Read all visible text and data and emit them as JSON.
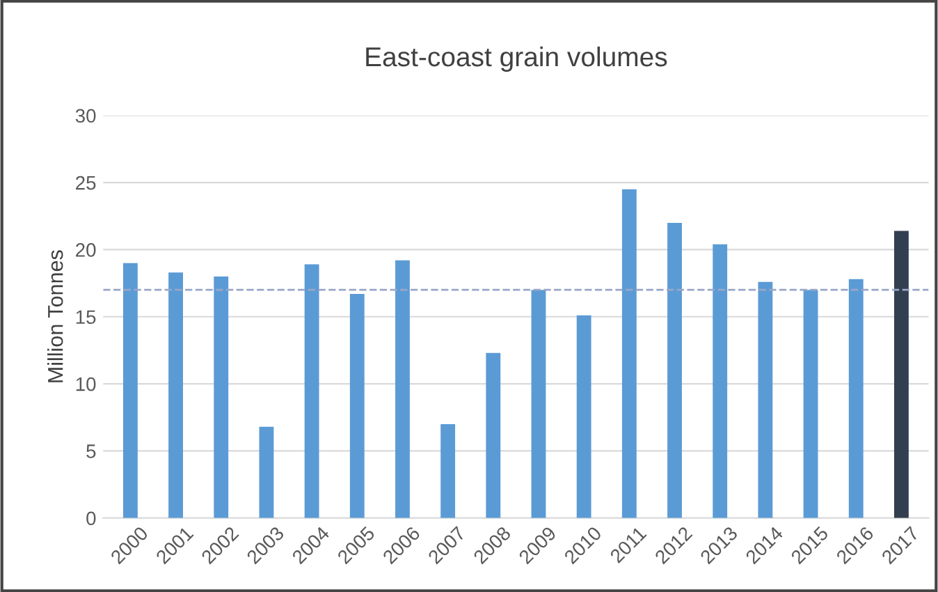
{
  "chart_data": {
    "type": "bar",
    "title": "East-coast grain volumes",
    "ylabel": "Million Tonnes",
    "categories": [
      "2000",
      "2001",
      "2002",
      "2003",
      "2004",
      "2005",
      "2006",
      "2007",
      "2008",
      "2009",
      "2010",
      "2011",
      "2012",
      "2013",
      "2014",
      "2015",
      "2016",
      "2017"
    ],
    "values": [
      19.0,
      18.3,
      18.0,
      6.8,
      18.9,
      16.7,
      19.2,
      7.0,
      12.3,
      17.0,
      15.1,
      24.5,
      22.0,
      20.4,
      17.6,
      17.0,
      17.8,
      21.4
    ],
    "colors": [
      "#5b9bd5",
      "#5b9bd5",
      "#5b9bd5",
      "#5b9bd5",
      "#5b9bd5",
      "#5b9bd5",
      "#5b9bd5",
      "#5b9bd5",
      "#5b9bd5",
      "#5b9bd5",
      "#5b9bd5",
      "#5b9bd5",
      "#5b9bd5",
      "#5b9bd5",
      "#5b9bd5",
      "#5b9bd5",
      "#5b9bd5",
      "#323f50"
    ],
    "ylim": [
      0,
      30
    ],
    "yticks": [
      0,
      5,
      10,
      15,
      20,
      25,
      30
    ],
    "grid": "y",
    "ref_lines": [
      {
        "axis": "y",
        "value": 17.0,
        "color": "#9aa6c8",
        "line_style": "dashed"
      }
    ]
  }
}
